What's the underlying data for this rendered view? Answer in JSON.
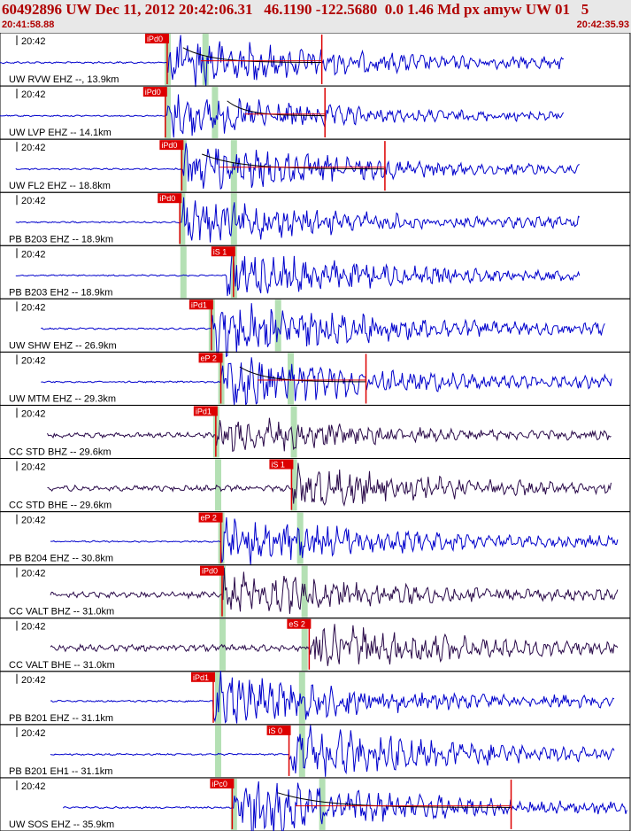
{
  "header": {
    "title": "60492896 UW Dec 11, 2012 20:42:06.31   46.1190 -122.5680  0.0 1.46 Md px amyw UW 01   5",
    "time_start": "20:41:58.88",
    "time_end": "20:42:35.93"
  },
  "colors": {
    "trace_blue": "#0000cc",
    "trace_purple": "#2a0a4a",
    "pick_red": "#dd0000",
    "window_green": "#b4e0b4",
    "coda_black": "#000000"
  },
  "traces": [
    {
      "time_label": "20:42",
      "station": "UW RVW EHZ --, 13.9km",
      "color": "blue",
      "start": 0.0,
      "end": 0.895,
      "onset": 0.265,
      "amp": 0.5,
      "green": [
        0.265,
        0.325
      ],
      "picks": [
        {
          "label": "iPd0",
          "pos": 0.265
        }
      ],
      "tail": 0.51,
      "coda": [
        0.29,
        0.51
      ]
    },
    {
      "time_label": "20:42",
      "station": "UW LVP EHZ -- 14.1km",
      "color": "blue",
      "start": 0.0,
      "end": 0.895,
      "onset": 0.265,
      "amp": 0.4,
      "green": [
        0.265,
        0.34
      ],
      "picks": [
        {
          "label": "iPd0",
          "pos": 0.262
        }
      ],
      "tail": 0.515,
      "coda": [
        0.36,
        0.515
      ]
    },
    {
      "time_label": "20:42",
      "station": "UW FL2 EHZ -- 18.8km",
      "color": "blue",
      "start": 0.025,
      "end": 0.92,
      "onset": 0.29,
      "amp": 0.45,
      "green": [
        0.29,
        0.37
      ],
      "picks": [
        {
          "label": "iPd0",
          "pos": 0.288
        }
      ],
      "tail": 0.61,
      "coda": [
        0.32,
        0.61
      ]
    },
    {
      "time_label": "20:42",
      "station": "PB B203 EHZ -- 18.9km",
      "color": "blue",
      "start": 0.025,
      "end": 0.92,
      "onset": 0.288,
      "amp": 0.42,
      "green": [
        0.288,
        0.37
      ],
      "picks": [
        {
          "label": "iPd0",
          "pos": 0.285
        }
      ],
      "tail": null,
      "coda": null
    },
    {
      "time_label": "20:42",
      "station": "PB B203 EH2 -- 18.9km",
      "color": "blue",
      "start": 0.025,
      "end": 0.92,
      "onset": 0.36,
      "amp": 0.42,
      "green": [
        0.29,
        0.37
      ],
      "picks": [
        {
          "label": "iS 1",
          "pos": 0.37
        }
      ],
      "tail": null,
      "coda": null
    },
    {
      "time_label": "20:42",
      "station": "UW SHW EHZ -- 26.9km",
      "color": "blue",
      "start": 0.065,
      "end": 0.96,
      "onset": 0.335,
      "amp": 0.5,
      "green": [
        0.335,
        0.44
      ],
      "picks": [
        {
          "label": "iPd1",
          "pos": 0.335
        }
      ],
      "tail": null,
      "coda": null
    },
    {
      "time_label": "20:42",
      "station": "UW MTM EHZ -- 29.3km",
      "color": "blue",
      "start": 0.065,
      "end": 0.97,
      "onset": 0.35,
      "amp": 0.48,
      "green": [
        0.35,
        0.46
      ],
      "picks": [
        {
          "label": "eP 2",
          "pos": 0.35
        }
      ],
      "tail": 0.58,
      "coda": [
        0.38,
        0.58
      ]
    },
    {
      "time_label": "20:42",
      "station": "CC STD BHZ -- 29.6km",
      "color": "purple",
      "start": 0.075,
      "end": 0.97,
      "onset": 0.342,
      "amp": 0.35,
      "green": [
        0.342,
        0.465
      ],
      "picks": [
        {
          "label": "iPd1",
          "pos": 0.342
        }
      ],
      "tail": null,
      "coda": null
    },
    {
      "time_label": "20:42",
      "station": "CC STD BHE -- 29.6km",
      "color": "purple",
      "start": 0.075,
      "end": 0.97,
      "onset": 0.462,
      "amp": 0.4,
      "green": [
        0.345,
        0.465
      ],
      "picks": [
        {
          "label": "iS 1",
          "pos": 0.462
        }
      ],
      "tail": null,
      "coda": null
    },
    {
      "time_label": "20:42",
      "station": "PB B204 EHZ -- 30.8km",
      "color": "blue",
      "start": 0.08,
      "end": 0.98,
      "onset": 0.35,
      "amp": 0.45,
      "green": [
        0.35,
        0.475
      ],
      "picks": [
        {
          "label": "eP 2",
          "pos": 0.35
        }
      ],
      "tail": null,
      "coda": null
    },
    {
      "time_label": "20:42",
      "station": "CC VALT BHZ -- 31.0km",
      "color": "purple",
      "start": 0.08,
      "end": 0.98,
      "onset": 0.352,
      "amp": 0.42,
      "green": [
        0.352,
        0.482
      ],
      "picks": [
        {
          "label": "iPd0",
          "pos": 0.352
        }
      ],
      "tail": null,
      "coda": null
    },
    {
      "time_label": "20:42",
      "station": "CC VALT BHE -- 31.0km",
      "color": "purple",
      "start": 0.08,
      "end": 0.98,
      "onset": 0.49,
      "amp": 0.45,
      "green": [
        0.352,
        0.482
      ],
      "picks": [
        {
          "label": "eS 2",
          "pos": 0.49
        }
      ],
      "tail": null,
      "coda": null
    },
    {
      "time_label": "20:42",
      "station": "PB B201 EHZ -- 31.1km",
      "color": "blue",
      "start": 0.08,
      "end": 0.975,
      "onset": 0.338,
      "amp": 0.48,
      "green": [
        0.345,
        0.478
      ],
      "picks": [
        {
          "label": "iPd1",
          "pos": 0.338
        }
      ],
      "tail": null,
      "coda": null
    },
    {
      "time_label": "20:42",
      "station": "PB B201 EH1 -- 31.1km",
      "color": "blue",
      "start": 0.08,
      "end": 0.975,
      "onset": 0.458,
      "amp": 0.5,
      "green": [
        0.345,
        0.478
      ],
      "picks": [
        {
          "label": "iS 0",
          "pos": 0.458
        }
      ],
      "tail": null,
      "coda": null
    },
    {
      "time_label": "20:42",
      "station": "UW SOS EHZ -- 35.9km",
      "color": "blue",
      "start": 0.1,
      "end": 0.995,
      "onset": 0.37,
      "amp": 0.55,
      "green": [
        0.37,
        0.51
      ],
      "picks": [
        {
          "label": "iPc0",
          "pos": 0.368
        }
      ],
      "tail": 0.81,
      "coda": [
        0.44,
        0.81
      ]
    }
  ]
}
